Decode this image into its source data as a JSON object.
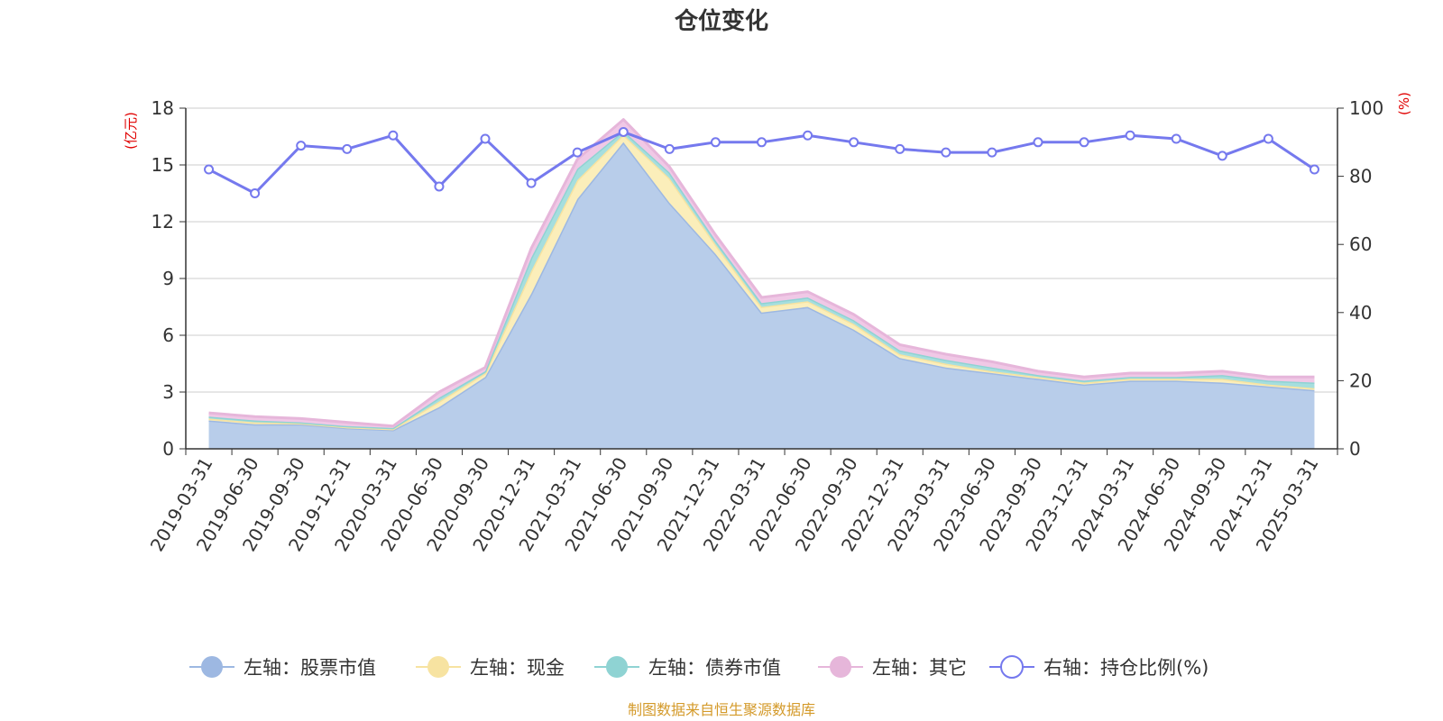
{
  "chart_data": {
    "type": "area",
    "title": "仓位变化",
    "left_axis_unit": "(亿元)",
    "right_axis_unit": "(%)",
    "left_ticks": [
      "0",
      "3",
      "6",
      "9",
      "12",
      "15",
      "18"
    ],
    "right_ticks": [
      "0",
      "20",
      "40",
      "60",
      "80",
      "100"
    ],
    "ylim_left": [
      0,
      18
    ],
    "ylim_right": [
      0,
      100
    ],
    "categories": [
      "2019-03-31",
      "2019-06-30",
      "2019-09-30",
      "2019-12-31",
      "2020-03-31",
      "2020-06-30",
      "2020-09-30",
      "2020-12-31",
      "2021-03-31",
      "2021-06-30",
      "2021-09-30",
      "2021-12-31",
      "2022-03-31",
      "2022-06-30",
      "2022-09-30",
      "2022-12-31",
      "2023-03-31",
      "2023-06-30",
      "2023-09-30",
      "2023-12-31",
      "2024-03-31",
      "2024-06-30",
      "2024-09-30",
      "2024-12-31",
      "2025-03-31"
    ],
    "series": [
      {
        "name": "左轴：股票市值",
        "axis": "left",
        "kind": "stacked-area",
        "color": "#9db8e2",
        "fill": "#b8cdea",
        "values": [
          1.5,
          1.3,
          1.3,
          1.1,
          1.0,
          2.2,
          3.8,
          8.2,
          13.2,
          16.2,
          13.0,
          10.3,
          7.2,
          7.5,
          6.3,
          4.8,
          4.3,
          4.0,
          3.7,
          3.4,
          3.6,
          3.6,
          3.5,
          3.3,
          3.1
        ]
      },
      {
        "name": "左轴：现金",
        "axis": "left",
        "kind": "stacked-area",
        "color": "#f7e3a1",
        "fill": "#fbeeba",
        "values": [
          0.1,
          0.1,
          0.05,
          0.05,
          0.05,
          0.3,
          0.2,
          1.2,
          1.0,
          0.4,
          1.3,
          0.5,
          0.3,
          0.3,
          0.3,
          0.2,
          0.2,
          0.1,
          0.1,
          0.1,
          0.1,
          0.1,
          0.2,
          0.1,
          0.1
        ]
      },
      {
        "name": "左轴：债券市值",
        "axis": "left",
        "kind": "stacked-area",
        "color": "#8fd3d3",
        "fill": "#a6dede",
        "values": [
          0.1,
          0.1,
          0.05,
          0.05,
          0.05,
          0.2,
          0.1,
          0.7,
          0.6,
          0.2,
          0.3,
          0.2,
          0.2,
          0.2,
          0.2,
          0.2,
          0.2,
          0.2,
          0.1,
          0.1,
          0.1,
          0.1,
          0.2,
          0.2,
          0.3
        ]
      },
      {
        "name": "左轴：其它",
        "axis": "left",
        "kind": "stacked-area",
        "color": "#e6b6da",
        "fill": "#f0c8e6",
        "values": [
          0.2,
          0.2,
          0.2,
          0.2,
          0.1,
          0.3,
          0.2,
          0.5,
          0.5,
          0.6,
          0.3,
          0.3,
          0.3,
          0.3,
          0.3,
          0.3,
          0.3,
          0.3,
          0.2,
          0.2,
          0.2,
          0.2,
          0.2,
          0.2,
          0.3
        ]
      },
      {
        "name": "右轴：持仓比例(%)",
        "axis": "right",
        "kind": "line",
        "color": "#7579ee",
        "fill": "#ffffff",
        "values": [
          82,
          75,
          89,
          88,
          92,
          77,
          91,
          78,
          87,
          93,
          88,
          90,
          90,
          92,
          90,
          88,
          87,
          87,
          90,
          90,
          92,
          91,
          86,
          91,
          82
        ]
      }
    ]
  },
  "source_text": "制图数据来自恒生聚源数据库"
}
